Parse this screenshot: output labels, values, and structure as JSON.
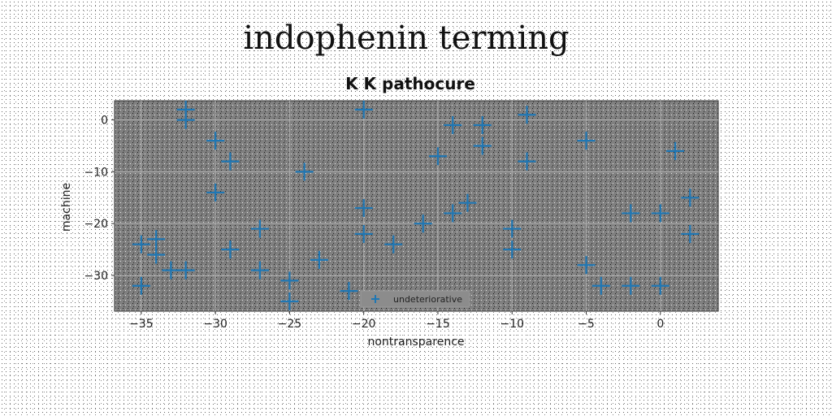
{
  "figure": {
    "suptitle": "indophenin terming"
  },
  "chart_data": {
    "type": "scatter",
    "title": "K K pathocure",
    "xlabel": "nontransparence",
    "ylabel": "machine",
    "xlim": [
      -36.8,
      3.9
    ],
    "ylim": [
      -36.9,
      3.7
    ],
    "xticks": [
      -35,
      -30,
      -25,
      -20,
      -15,
      -10,
      -5,
      0
    ],
    "yticks": [
      0,
      -10,
      -20,
      -30
    ],
    "grid": true,
    "legend_position": "lower-center",
    "colors": {
      "marker": "#1f77b4",
      "plot_bg": "#808080",
      "grid": "#b0b0b0"
    },
    "series": [
      {
        "name": "undeteriorative",
        "marker": "plus",
        "points": [
          [
            -32,
            2
          ],
          [
            -32,
            0
          ],
          [
            -20,
            2
          ],
          [
            -9,
            1
          ],
          [
            -14,
            -1
          ],
          [
            -12,
            -1
          ],
          [
            -30,
            -4
          ],
          [
            -5,
            -4
          ],
          [
            -12,
            -5
          ],
          [
            1,
            -6
          ],
          [
            -15,
            -7
          ],
          [
            -29,
            -8
          ],
          [
            -9,
            -8
          ],
          [
            -24,
            -10
          ],
          [
            -30,
            -14
          ],
          [
            2,
            -15
          ],
          [
            -13,
            -16
          ],
          [
            -20,
            -17
          ],
          [
            -14,
            -18
          ],
          [
            -2,
            -18
          ],
          [
            0,
            -18
          ],
          [
            -16,
            -20
          ],
          [
            -27,
            -21
          ],
          [
            -10,
            -21
          ],
          [
            -20,
            -22
          ],
          [
            2,
            -22
          ],
          [
            -34,
            -23
          ],
          [
            -35,
            -24
          ],
          [
            -18,
            -24
          ],
          [
            -29,
            -25
          ],
          [
            -10,
            -25
          ],
          [
            -34,
            -26
          ],
          [
            -23,
            -27
          ],
          [
            -5,
            -28
          ],
          [
            -33,
            -29
          ],
          [
            -32,
            -29
          ],
          [
            -27,
            -29
          ],
          [
            -25,
            -31
          ],
          [
            -35,
            -32
          ],
          [
            -4,
            -32
          ],
          [
            -2,
            -32
          ],
          [
            0,
            -32
          ],
          [
            -21,
            -33
          ],
          [
            -25,
            -35
          ]
        ]
      }
    ]
  }
}
